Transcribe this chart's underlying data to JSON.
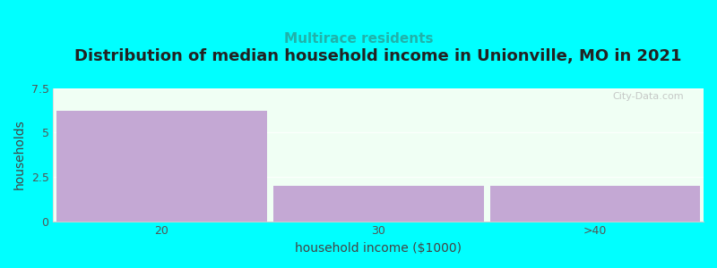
{
  "title": "Distribution of median household income in Unionville, MO in 2021",
  "subtitle": "Multirace residents",
  "subtitle_color": "#20b2aa",
  "xlabel": "household income ($1000)",
  "ylabel": "households",
  "categories": [
    "20",
    "30",
    ">40"
  ],
  "values": [
    6.2,
    2.0,
    2.0
  ],
  "bar_color": "#c4a8d4",
  "background_color": "#00ffff",
  "plot_bg_color": "#f0fff4",
  "ylim": [
    0,
    7.5
  ],
  "yticks": [
    0,
    2.5,
    5,
    7.5
  ],
  "title_fontsize": 13,
  "subtitle_fontsize": 11,
  "label_fontsize": 10,
  "tick_fontsize": 9,
  "watermark": "City-Data.com"
}
